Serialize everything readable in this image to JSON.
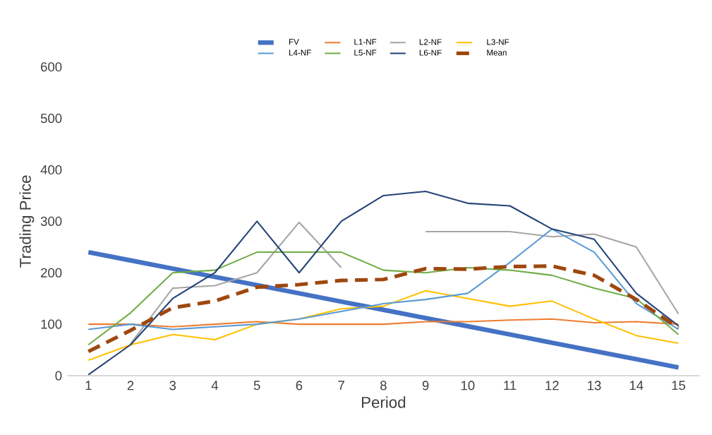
{
  "chart_data": {
    "type": "line",
    "xlabel": "Period",
    "ylabel": "Trading Price",
    "categories": [
      "1",
      "2",
      "3",
      "4",
      "5",
      "6",
      "7",
      "8",
      "9",
      "10",
      "11",
      "12",
      "13",
      "14",
      "15"
    ],
    "ylim": [
      0,
      600
    ],
    "yticks": [
      0,
      100,
      200,
      300,
      400,
      500,
      600
    ],
    "legend": "top",
    "grid": false,
    "series": [
      {
        "name": "FV",
        "color": "#4472c4",
        "values": [
          240,
          224,
          208,
          192,
          176,
          160,
          144,
          128,
          112,
          96,
          80,
          64,
          48,
          32,
          16
        ]
      },
      {
        "name": "L1-NF",
        "color": "#ed7d31",
        "values": [
          100,
          100,
          95,
          100,
          105,
          100,
          100,
          100,
          105,
          105,
          108,
          110,
          103,
          105,
          100
        ]
      },
      {
        "name": "L2-NF",
        "color": "#a5a5a5",
        "values": [
          null,
          62,
          170,
          175,
          200,
          298,
          210,
          null,
          280,
          280,
          280,
          270,
          275,
          250,
          120
        ]
      },
      {
        "name": "L3-NF",
        "color": "#ffc000",
        "values": [
          30,
          60,
          80,
          70,
          100,
          110,
          130,
          135,
          165,
          150,
          135,
          145,
          110,
          78,
          63
        ]
      },
      {
        "name": "L4-NF",
        "color": "#5b9bd5",
        "values": [
          90,
          100,
          90,
          95,
          100,
          110,
          125,
          140,
          148,
          160,
          220,
          285,
          240,
          140,
          90
        ]
      },
      {
        "name": "L5-NF",
        "color": "#70ad47",
        "values": [
          60,
          122,
          200,
          205,
          240,
          240,
          240,
          205,
          200,
          210,
          205,
          195,
          170,
          150,
          80
        ]
      },
      {
        "name": "L6-NF",
        "color": "#264478",
        "values": [
          2,
          60,
          150,
          200,
          300,
          200,
          300,
          350,
          358,
          335,
          330,
          285,
          265,
          160,
          97
        ]
      },
      {
        "name": "Mean",
        "color": "#9e480e",
        "line_style": "dashed",
        "values": [
          47,
          88,
          132,
          145,
          172,
          177,
          185,
          187,
          208,
          207,
          212,
          213,
          195,
          148,
          93
        ]
      }
    ]
  }
}
